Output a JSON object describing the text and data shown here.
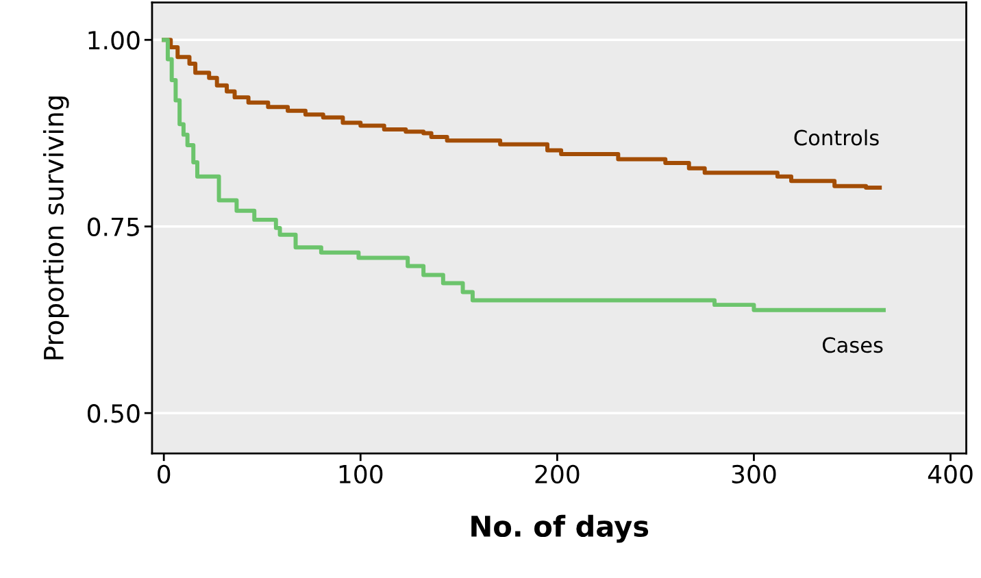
{
  "chart_data": {
    "type": "step",
    "xlabel": "No. of days",
    "ylabel": "Proportion surviving",
    "xlim": [
      -6,
      408
    ],
    "ylim": [
      0.446,
      1.05
    ],
    "xticks": [
      0,
      100,
      200,
      300,
      400
    ],
    "yticks": [
      {
        "value": 0.5,
        "label": "0.50"
      },
      {
        "value": 0.75,
        "label": "0.75"
      },
      {
        "value": 1.0,
        "label": "1.00"
      }
    ],
    "grid": "y",
    "legend": false,
    "line_style": "solid",
    "marker": "none",
    "series": [
      {
        "name": "Controls",
        "color": "#a34d05",
        "x": [
          0,
          3.5,
          7,
          13,
          16,
          23,
          27,
          32,
          36,
          43,
          53,
          63,
          72,
          81,
          91,
          100,
          112,
          123,
          132,
          136,
          144,
          171,
          195,
          202,
          231,
          255,
          267,
          275,
          312,
          319,
          341,
          357,
          364
        ],
        "values": [
          1.0,
          0.99,
          0.977,
          0.968,
          0.956,
          0.949,
          0.939,
          0.931,
          0.923,
          0.916,
          0.91,
          0.905,
          0.9,
          0.896,
          0.889,
          0.885,
          0.88,
          0.877,
          0.875,
          0.87,
          0.865,
          0.86,
          0.852,
          0.847,
          0.84,
          0.835,
          0.828,
          0.822,
          0.817,
          0.811,
          0.804,
          0.802,
          0.802
        ]
      },
      {
        "name": "Cases",
        "color": "#6cc46c",
        "x": [
          0,
          2,
          4,
          6,
          8,
          10,
          12,
          15,
          17,
          28,
          37,
          46,
          57,
          59,
          67,
          80,
          99,
          124,
          132,
          142,
          152,
          157,
          280,
          300,
          366
        ],
        "values": [
          1.0,
          0.974,
          0.946,
          0.919,
          0.887,
          0.873,
          0.859,
          0.836,
          0.817,
          0.785,
          0.771,
          0.759,
          0.748,
          0.739,
          0.722,
          0.715,
          0.708,
          0.697,
          0.685,
          0.674,
          0.662,
          0.651,
          0.645,
          0.638,
          0.638
        ]
      }
    ]
  }
}
